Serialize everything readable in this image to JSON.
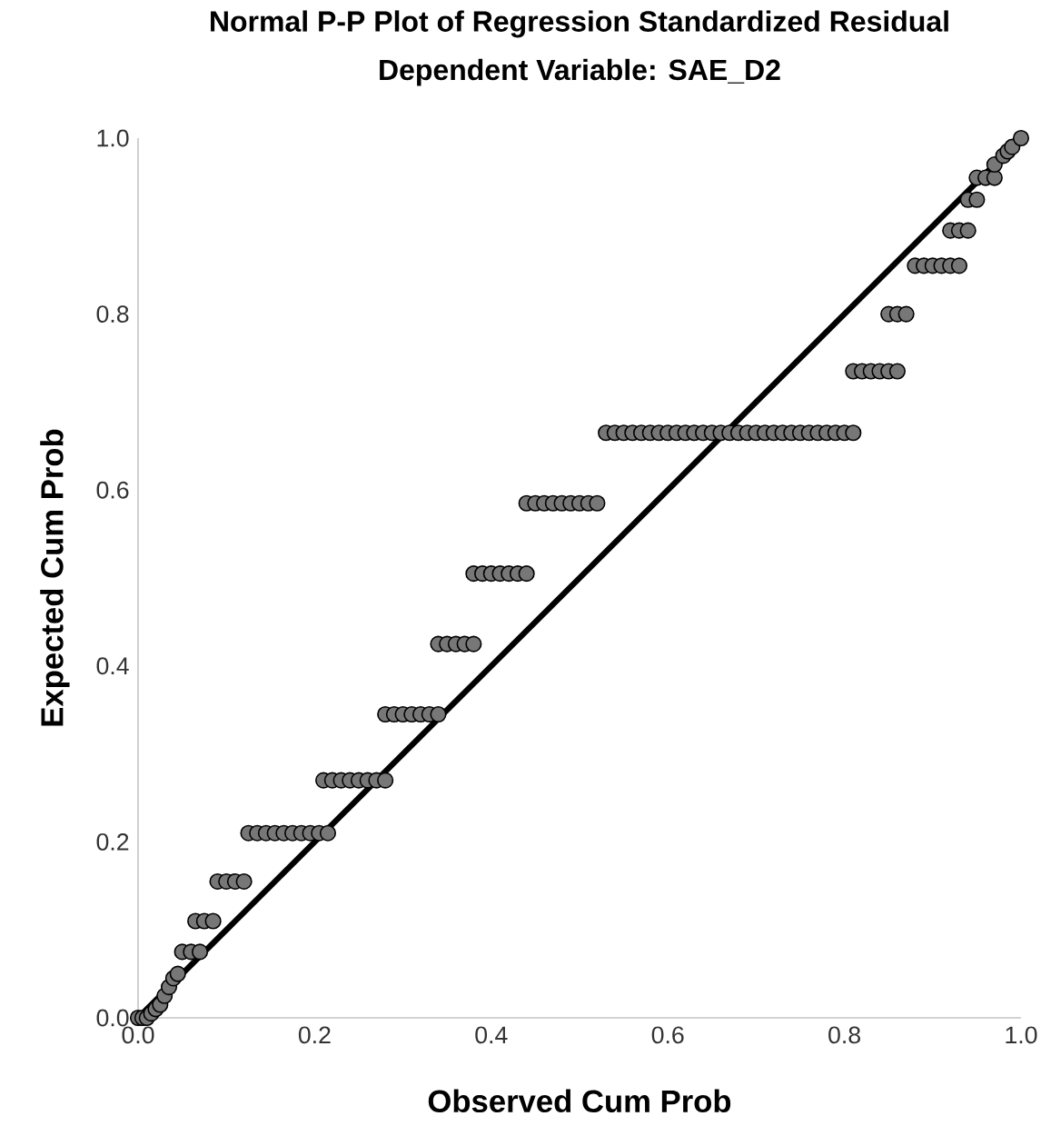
{
  "chart_data": {
    "type": "scatter",
    "title": "Normal P-P Plot of Regression Standardized Residual",
    "subtitle": "Dependent Variable: SAE_D2",
    "xlabel": "Observed Cum Prob",
    "ylabel": "Expected Cum Prob",
    "xlim": [
      0,
      1
    ],
    "ylim": [
      0,
      1
    ],
    "xticks": [
      {
        "value": 0,
        "label": "0.0"
      },
      {
        "value": 0.2,
        "label": "0.2"
      },
      {
        "value": 0.4,
        "label": "0.4"
      },
      {
        "value": 0.6,
        "label": "0.6"
      },
      {
        "value": 0.8,
        "label": "0.8"
      },
      {
        "value": 1,
        "label": "1.0"
      }
    ],
    "yticks": [
      {
        "value": 0,
        "label": "0.0"
      },
      {
        "value": 0.2,
        "label": "0.2"
      },
      {
        "value": 0.4,
        "label": "0.4"
      },
      {
        "value": 0.6,
        "label": "0.6"
      },
      {
        "value": 0.8,
        "label": "0.8"
      },
      {
        "value": 1,
        "label": "1.0"
      }
    ],
    "grid": false,
    "marker": "circle",
    "series": [
      {
        "color": "#777777",
        "x": [
          0,
          0.005,
          0.01,
          0.015,
          0.02,
          0.025,
          0.03,
          0.035,
          0.04,
          0.045,
          0.05,
          0.06,
          0.07,
          0.065,
          0.075,
          0.085,
          0.09,
          0.1,
          0.11,
          0.12,
          0.125,
          0.135,
          0.145,
          0.155,
          0.165,
          0.175,
          0.185,
          0.195,
          0.205,
          0.215,
          0.21,
          0.22,
          0.23,
          0.24,
          0.25,
          0.26,
          0.27,
          0.28,
          0.28,
          0.29,
          0.3,
          0.31,
          0.32,
          0.33,
          0.34,
          0.34,
          0.35,
          0.36,
          0.37,
          0.38,
          0.38,
          0.39,
          0.4,
          0.41,
          0.42,
          0.43,
          0.44,
          0.44,
          0.45,
          0.46,
          0.47,
          0.48,
          0.49,
          0.5,
          0.51,
          0.52,
          0.53,
          0.54,
          0.55,
          0.56,
          0.57,
          0.58,
          0.59,
          0.6,
          0.61,
          0.62,
          0.63,
          0.64,
          0.65,
          0.66,
          0.67,
          0.68,
          0.69,
          0.7,
          0.71,
          0.72,
          0.73,
          0.74,
          0.75,
          0.76,
          0.77,
          0.78,
          0.79,
          0.8,
          0.81,
          0.81,
          0.82,
          0.83,
          0.84,
          0.85,
          0.86,
          0.85,
          0.86,
          0.87,
          0.88,
          0.89,
          0.9,
          0.91,
          0.92,
          0.93,
          0.92,
          0.93,
          0.94,
          0.94,
          0.95,
          0.95,
          0.96,
          0.97,
          0.97,
          0.98,
          0.985,
          0.99,
          1.0
        ],
        "values": [
          0,
          0,
          0,
          0.005,
          0.01,
          0.015,
          0.025,
          0.035,
          0.045,
          0.05,
          0.075,
          0.075,
          0.075,
          0.11,
          0.11,
          0.11,
          0.155,
          0.155,
          0.155,
          0.155,
          0.21,
          0.21,
          0.21,
          0.21,
          0.21,
          0.21,
          0.21,
          0.21,
          0.21,
          0.21,
          0.27,
          0.27,
          0.27,
          0.27,
          0.27,
          0.27,
          0.27,
          0.27,
          0.345,
          0.345,
          0.345,
          0.345,
          0.345,
          0.345,
          0.345,
          0.425,
          0.425,
          0.425,
          0.425,
          0.425,
          0.505,
          0.505,
          0.505,
          0.505,
          0.505,
          0.505,
          0.505,
          0.585,
          0.585,
          0.585,
          0.585,
          0.585,
          0.585,
          0.585,
          0.585,
          0.585,
          0.665,
          0.665,
          0.665,
          0.665,
          0.665,
          0.665,
          0.665,
          0.665,
          0.665,
          0.665,
          0.665,
          0.665,
          0.665,
          0.665,
          0.665,
          0.665,
          0.665,
          0.665,
          0.665,
          0.665,
          0.665,
          0.665,
          0.665,
          0.665,
          0.665,
          0.665,
          0.665,
          0.665,
          0.665,
          0.735,
          0.735,
          0.735,
          0.735,
          0.735,
          0.735,
          0.8,
          0.8,
          0.8,
          0.855,
          0.855,
          0.855,
          0.855,
          0.855,
          0.855,
          0.895,
          0.895,
          0.895,
          0.93,
          0.93,
          0.955,
          0.955,
          0.955,
          0.97,
          0.98,
          0.985,
          0.99,
          1.0
        ]
      },
      {
        "type": "line",
        "color": "#000000",
        "x": [
          0,
          1
        ],
        "values": [
          0,
          1
        ]
      }
    ]
  }
}
